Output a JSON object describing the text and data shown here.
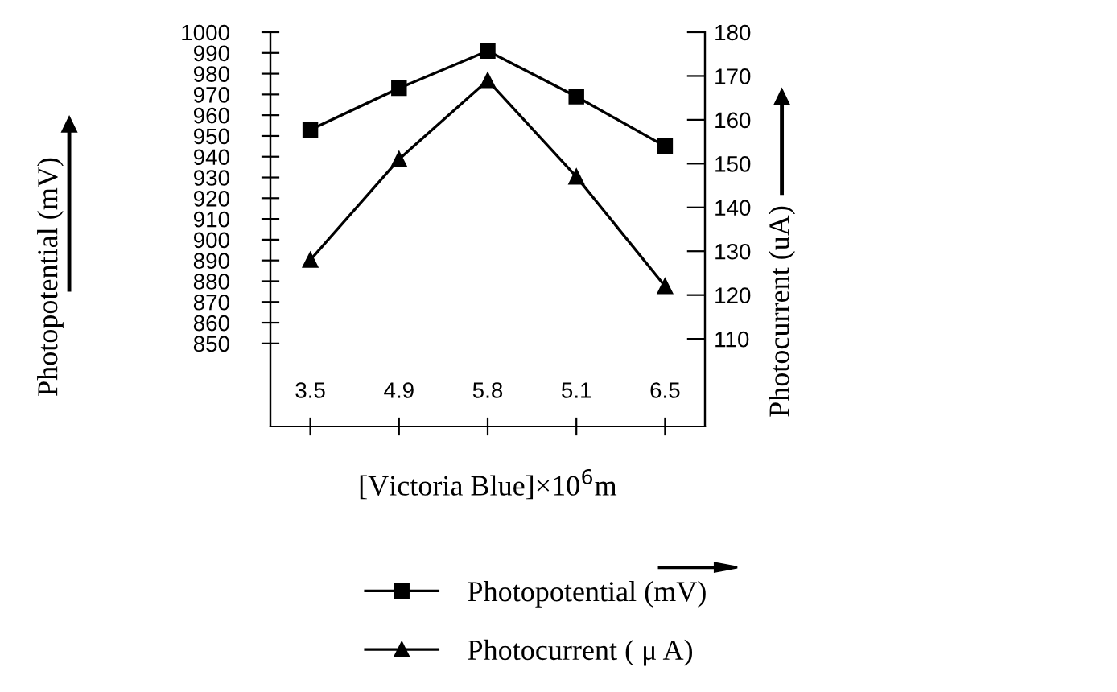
{
  "chart_data": {
    "type": "line",
    "xlabel": "[Victoria Blue]×10$^{6}$m",
    "ylabel": "Photopotential (mV)",
    "y2label": "Photocurrent (uA)",
    "categories": [
      "3.5",
      "4.9",
      "5.8",
      "5.1",
      "6.5"
    ],
    "series": [
      {
        "name": "Photopotential (mV)",
        "color": "#000000",
        "marker": "square",
        "values": [
          953,
          973,
          991,
          969,
          945
        ]
      },
      {
        "name": "Photocurrent ( μ A)",
        "color": "#000000",
        "marker": "triangle",
        "axis": "y2",
        "values": [
          128,
          151,
          169,
          147,
          122
        ]
      }
    ],
    "ylim": [
      810,
      1000
    ],
    "yticks": [
      850,
      860,
      870,
      880,
      890,
      900,
      910,
      920,
      930,
      940,
      950,
      960,
      970,
      980,
      990,
      1000
    ],
    "y2lim": [
      90,
      180
    ],
    "y2ticks": [
      110,
      120,
      130,
      140,
      150,
      160,
      170,
      180
    ],
    "legend": "bottom",
    "grid": false,
    "line_style": "solid"
  }
}
